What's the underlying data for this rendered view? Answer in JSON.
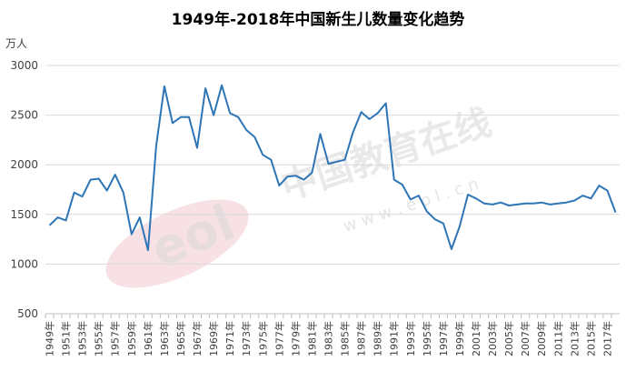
{
  "chart_data": {
    "type": "line",
    "title": "1949年-2018年中国新生儿数量变化趋势",
    "ylabel": "万人",
    "ylim": [
      500,
      3000
    ],
    "yticks": [
      500,
      1000,
      1500,
      2000,
      2500,
      3000
    ],
    "grid": true,
    "line_color": "#2e75b6",
    "x": [
      1949,
      1950,
      1951,
      1952,
      1953,
      1954,
      1955,
      1956,
      1957,
      1958,
      1959,
      1960,
      1961,
      1962,
      1963,
      1964,
      1965,
      1966,
      1967,
      1968,
      1969,
      1970,
      1971,
      1972,
      1973,
      1974,
      1975,
      1976,
      1977,
      1978,
      1979,
      1980,
      1981,
      1982,
      1983,
      1984,
      1985,
      1986,
      1987,
      1988,
      1989,
      1990,
      1991,
      1992,
      1993,
      1994,
      1995,
      1996,
      1997,
      1998,
      1999,
      2000,
      2001,
      2002,
      2003,
      2004,
      2005,
      2006,
      2007,
      2008,
      2009,
      2010,
      2011,
      2012,
      2013,
      2014,
      2015,
      2016,
      2017,
      2018
    ],
    "xtick_labels": [
      "1949年",
      "1951年",
      "1953年",
      "1955年",
      "1957年",
      "1959年",
      "1961年",
      "1963年",
      "1965年",
      "1967年",
      "1969年",
      "1971年",
      "1973年",
      "1975年",
      "1977年",
      "1979年",
      "1981年",
      "1983年",
      "1985年",
      "1987年",
      "1989年",
      "1991年",
      "1993年",
      "1995年",
      "1997年",
      "1999年",
      "2001年",
      "2003年",
      "2005年",
      "2007年",
      "2009年",
      "2011年",
      "2013年",
      "2015年",
      "2017年"
    ],
    "series": [
      {
        "values": [
          1390,
          1470,
          1440,
          1720,
          1680,
          1850,
          1860,
          1740,
          1900,
          1720,
          1300,
          1470,
          1140,
          2190,
          2790,
          2420,
          2480,
          2480,
          2170,
          2770,
          2500,
          2800,
          2520,
          2480,
          2350,
          2280,
          2100,
          2050,
          1790,
          1880,
          1890,
          1850,
          1920,
          2310,
          2010,
          2030,
          2050,
          2330,
          2530,
          2460,
          2520,
          2620,
          1850,
          1800,
          1650,
          1690,
          1530,
          1450,
          1410,
          1150,
          1380,
          1700,
          1660,
          1610,
          1600,
          1620,
          1590,
          1600,
          1610,
          1610,
          1620,
          1600,
          1610,
          1620,
          1640,
          1690,
          1660,
          1790,
          1740,
          1520
        ]
      }
    ]
  },
  "watermark": {
    "logo_text": "eol",
    "site_name": "中国教育在线",
    "url": "w w w . e o l . c n"
  }
}
